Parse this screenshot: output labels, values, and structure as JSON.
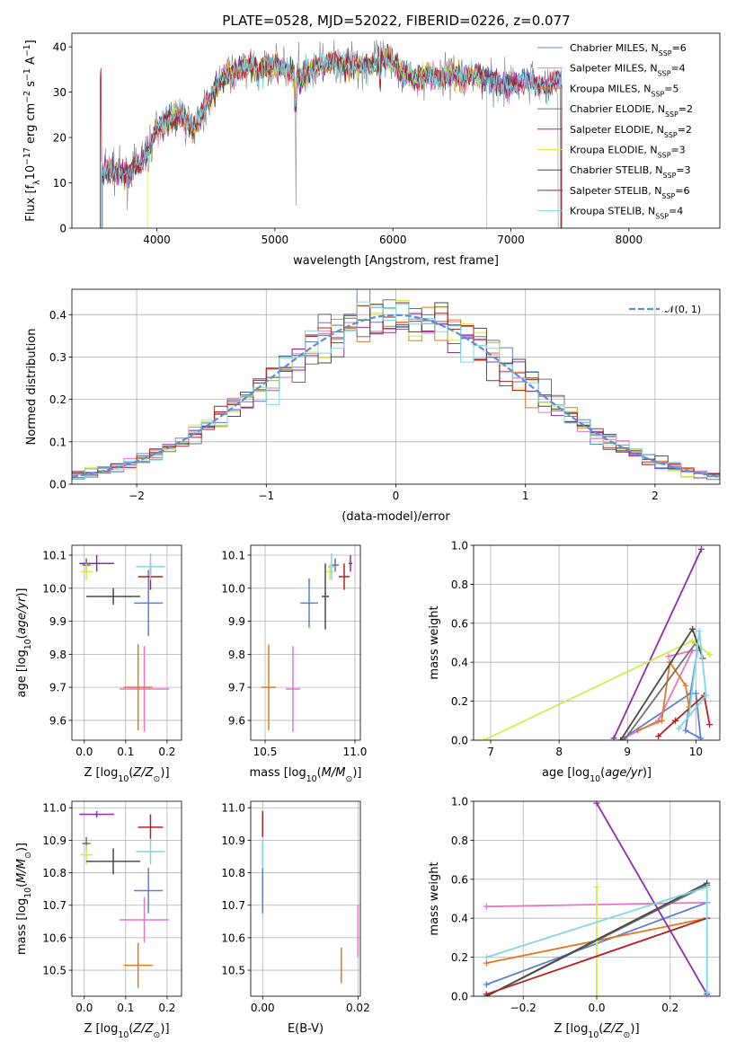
{
  "title": "PLATE=0528, MJD=52022, FIBERID=0226, z=0.077",
  "models": [
    {
      "name": "Chabrier MILES, N_SSP=6",
      "color": "#5b7fd6"
    },
    {
      "name": "Salpeter MILES, N_SSP=4",
      "color": "#e377c2"
    },
    {
      "name": "Kroupa MILES, N_SSP=5",
      "color": "#df7a20"
    },
    {
      "name": "Chabrier ELODIE, N_SSP=2",
      "color": "#707070"
    },
    {
      "name": "Salpeter ELODIE, N_SSP=2",
      "color": "#8e2cae"
    },
    {
      "name": "Kroupa ELODIE, N_SSP=3",
      "color": "#d4e84c"
    },
    {
      "name": "Chabrier STELIB, N_SSP=3",
      "color": "#4a4a4a"
    },
    {
      "name": "Salpeter STELIB, N_SSP=6",
      "color": "#b22222"
    },
    {
      "name": "Kroupa STELIB, N_SSP=4",
      "color": "#7fd6e6"
    }
  ],
  "chart_data": [
    {
      "type": "line",
      "panel": "spectrum",
      "xlabel": "wavelength [Angstrom, rest frame]",
      "ylabel": "Flux [f_λ 10^-17 erg cm^-2 s^-1 A^-1]",
      "xlim": [
        3280,
        8770
      ],
      "ylim": [
        0,
        43
      ],
      "xticks": [
        4000,
        5000,
        6000,
        7000,
        8000
      ],
      "yticks": [
        0,
        10,
        20,
        30,
        40
      ],
      "legend": "upper right",
      "series_shape": {
        "x": [
          3530,
          3600,
          3750,
          3850,
          3930,
          4000,
          4100,
          4200,
          4300,
          4400,
          4500,
          4600,
          4700,
          4800,
          4900,
          5000,
          5100,
          5200,
          5300,
          5400,
          5500,
          5600,
          5700,
          5800,
          5900,
          6000,
          6100,
          6200,
          6300,
          6400,
          6500,
          6600,
          6700,
          6800,
          6900,
          7000,
          7100,
          7200,
          7300,
          7400,
          7500,
          7600,
          7700,
          7800,
          7900,
          8000,
          8100,
          8200,
          8300,
          8400
        ],
        "y": [
          12,
          13,
          12,
          14,
          17,
          22,
          24,
          25,
          22,
          26,
          31,
          34,
          35,
          36,
          35,
          36,
          35,
          33,
          35,
          36,
          37,
          36,
          36,
          36,
          37,
          37,
          34,
          33,
          34,
          33,
          34,
          33,
          34,
          33,
          32,
          31,
          33,
          32,
          31,
          33,
          33,
          33,
          33,
          34,
          35,
          35,
          34,
          35,
          35,
          34
        ]
      }
    },
    {
      "type": "histogram",
      "panel": "residuals",
      "xlabel": "(data-model)/error",
      "ylabel": "Normed distribution",
      "xlim": [
        -2.5,
        2.5
      ],
      "ylim": [
        0,
        0.46
      ],
      "xticks": [
        -2,
        -1,
        0,
        1,
        2
      ],
      "yticks": [
        0.0,
        0.1,
        0.2,
        0.3,
        0.4
      ],
      "grid": true,
      "reference": {
        "name": "N(0,1)",
        "color": "#5b8ed6"
      },
      "bin_width": 0.1
    },
    {
      "type": "scatter",
      "panel": "age-vs-Z",
      "xlabel": "Z [log10(Z/Z☉)]",
      "ylabel": "age [log10(age/yr)]",
      "xlim": [
        -0.03,
        0.235
      ],
      "ylim": [
        9.54,
        10.13
      ],
      "xticks": [
        0.0,
        0.1,
        0.2
      ],
      "yticks": [
        9.6,
        9.7,
        9.8,
        9.9,
        10.0,
        10.1
      ],
      "grid": true,
      "points": [
        {
          "model": 0,
          "x": 0.155,
          "xerr": 0.035,
          "y": 9.955,
          "yerr": 0.1
        },
        {
          "model": 1,
          "x": 0.145,
          "xerr": 0.06,
          "y": 9.695,
          "yerr": 0.13
        },
        {
          "model": 2,
          "x": 0.13,
          "xerr": 0.035,
          "y": 9.7,
          "yerr": 0.13
        },
        {
          "model": 3,
          "x": 0.005,
          "xerr": 0.01,
          "y": 10.07,
          "yerr": 0.02
        },
        {
          "model": 4,
          "x": 0.03,
          "xerr": 0.042,
          "y": 10.075,
          "yerr": 0.025
        },
        {
          "model": 5,
          "x": 0.005,
          "xerr": 0.015,
          "y": 10.05,
          "yerr": 0.025
        },
        {
          "model": 6,
          "x": 0.07,
          "xerr": 0.065,
          "y": 9.975,
          "yerr": 0.025
        },
        {
          "model": 7,
          "x": 0.16,
          "xerr": 0.03,
          "y": 10.035,
          "yerr": 0.04
        },
        {
          "model": 8,
          "x": 0.16,
          "xerr": 0.035,
          "y": 10.065,
          "yerr": 0.04
        }
      ]
    },
    {
      "type": "scatter",
      "panel": "age-vs-mass",
      "xlabel": "mass [log10(M/M☉)]",
      "ylabel": "",
      "xlim": [
        10.42,
        11.03
      ],
      "ylim": [
        9.54,
        10.13
      ],
      "xticks": [
        10.5,
        11.0
      ],
      "yticks": [
        9.6,
        9.7,
        9.8,
        9.9,
        10.0,
        10.1
      ],
      "grid": true,
      "points": [
        {
          "model": 0,
          "x": 10.745,
          "xerr": 0.05,
          "y": 9.955,
          "yerr": 0.075
        },
        {
          "model": 1,
          "x": 10.655,
          "xerr": 0.04,
          "y": 9.695,
          "yerr": 0.13
        },
        {
          "model": 2,
          "x": 10.52,
          "xerr": 0.04,
          "y": 9.7,
          "yerr": 0.13
        },
        {
          "model": 3,
          "x": 10.89,
          "xerr": 0.02,
          "y": 10.07,
          "yerr": 0.02
        },
        {
          "model": 4,
          "x": 10.975,
          "xerr": 0.01,
          "y": 10.075,
          "yerr": 0.025
        },
        {
          "model": 5,
          "x": 10.86,
          "xerr": 0.02,
          "y": 10.05,
          "yerr": 0.025
        },
        {
          "model": 6,
          "x": 10.835,
          "xerr": 0.02,
          "y": 9.975,
          "yerr": 0.1
        },
        {
          "model": 7,
          "x": 10.94,
          "xerr": 0.03,
          "y": 10.035,
          "yerr": 0.04
        },
        {
          "model": 8,
          "x": 10.87,
          "xerr": 0.02,
          "y": 10.065,
          "yerr": 0.04
        }
      ]
    },
    {
      "type": "line",
      "panel": "weight-vs-age",
      "xlabel": "age [log10(age/yr)]",
      "ylabel": "mass weight",
      "xlim": [
        6.75,
        10.35
      ],
      "ylim": [
        0,
        1.0
      ],
      "xticks": [
        7,
        8,
        9,
        10
      ],
      "yticks": [
        0.0,
        0.2,
        0.4,
        0.6,
        0.8,
        1.0
      ],
      "grid": true,
      "series": [
        {
          "model": 0,
          "x": [
            8.9,
            9.92,
            10.02,
            9.85,
            10.07,
            10.0
          ],
          "y": [
            0.0,
            0.24,
            0.46,
            0.05,
            0.01,
            0.24
          ]
        },
        {
          "model": 1,
          "x": [
            8.95,
            9.45,
            9.95,
            9.6
          ],
          "y": [
            0.01,
            0.1,
            0.46,
            0.43
          ]
        },
        {
          "model": 2,
          "x": [
            9.15,
            9.5,
            9.62,
            9.85,
            9.9
          ],
          "y": [
            0.05,
            0.1,
            0.4,
            0.28,
            0.17
          ]
        },
        {
          "model": 3,
          "x": [
            8.95,
            10.0
          ],
          "y": [
            0.0,
            0.5
          ]
        },
        {
          "model": 4,
          "x": [
            8.8,
            10.08
          ],
          "y": [
            0.01,
            0.98
          ]
        },
        {
          "model": 5,
          "x": [
            6.9,
            9.95,
            10.2
          ],
          "y": [
            0.0,
            0.51,
            0.44
          ]
        },
        {
          "model": 6,
          "x": [
            8.9,
            9.95,
            10.1
          ],
          "y": [
            0.0,
            0.57,
            0.42
          ]
        },
        {
          "model": 7,
          "x": [
            9.45,
            9.7,
            10.12,
            10.2
          ],
          "y": [
            0.02,
            0.1,
            0.23,
            0.08
          ]
        },
        {
          "model": 8,
          "x": [
            9.9,
            10.05,
            10.15,
            9.75
          ],
          "y": [
            0.13,
            0.56,
            0.23,
            0.06
          ]
        }
      ]
    },
    {
      "type": "scatter",
      "panel": "mass-vs-Z",
      "xlabel": "Z [log10(Z/Z☉)]",
      "ylabel": "mass [log10(M/M☉)]",
      "xlim": [
        -0.03,
        0.235
      ],
      "ylim": [
        10.42,
        11.02
      ],
      "xticks": [
        0.0,
        0.1,
        0.2
      ],
      "yticks": [
        10.5,
        10.6,
        10.7,
        10.8,
        10.9,
        11.0
      ],
      "grid": true,
      "points": [
        {
          "model": 0,
          "x": 0.155,
          "xerr": 0.035,
          "y": 10.745,
          "yerr": 0.07
        },
        {
          "model": 1,
          "x": 0.145,
          "xerr": 0.06,
          "y": 10.655,
          "yerr": 0.07
        },
        {
          "model": 2,
          "x": 0.13,
          "xerr": 0.035,
          "y": 10.515,
          "yerr": 0.07
        },
        {
          "model": 3,
          "x": 0.005,
          "xerr": 0.01,
          "y": 10.89,
          "yerr": 0.02
        },
        {
          "model": 4,
          "x": 0.03,
          "xerr": 0.042,
          "y": 10.98,
          "yerr": 0.01
        },
        {
          "model": 5,
          "x": 0.005,
          "xerr": 0.015,
          "y": 10.855,
          "yerr": 0.03
        },
        {
          "model": 6,
          "x": 0.07,
          "xerr": 0.065,
          "y": 10.835,
          "yerr": 0.04
        },
        {
          "model": 7,
          "x": 0.16,
          "xerr": 0.03,
          "y": 10.94,
          "yerr": 0.04
        },
        {
          "model": 8,
          "x": 0.16,
          "xerr": 0.035,
          "y": 10.865,
          "yerr": 0.04
        }
      ]
    },
    {
      "type": "scatter",
      "panel": "mass-vs-EBV",
      "xlabel": "E(B-V)",
      "ylabel": "",
      "xlim": [
        -0.0025,
        0.0205
      ],
      "ylim": [
        10.42,
        11.02
      ],
      "xticks": [
        0.0,
        0.02
      ],
      "yticks": [
        10.5,
        10.6,
        10.7,
        10.8,
        10.9,
        11.0
      ],
      "grid": true,
      "points": [
        {
          "model": 0,
          "x": 0.0,
          "y": 10.745,
          "yerr": 0.07
        },
        {
          "model": 1,
          "x": 0.02,
          "y": 10.62,
          "yerr": 0.08
        },
        {
          "model": 2,
          "x": 0.0165,
          "y": 10.515,
          "yerr": 0.055
        },
        {
          "model": 5,
          "x": 0.0,
          "y": 10.86,
          "yerr": 0.03
        },
        {
          "model": 7,
          "x": 0.0,
          "y": 10.95,
          "yerr": 0.04
        },
        {
          "model": 8,
          "x": 0.0,
          "y": 10.86,
          "yerr": 0.04
        }
      ]
    },
    {
      "type": "line",
      "panel": "weight-vs-Z",
      "xlabel": "Z [log10(Z/Z☉)]",
      "ylabel": "mass weight",
      "xlim": [
        -0.335,
        0.335
      ],
      "ylim": [
        0,
        1.0
      ],
      "xticks": [
        -0.2,
        0.0,
        0.2
      ],
      "yticks": [
        0.0,
        0.2,
        0.4,
        0.6,
        0.8,
        1.0
      ],
      "grid": true,
      "series": [
        {
          "model": 0,
          "x": [
            -0.3,
            0.3
          ],
          "y": [
            0.06,
            0.48
          ]
        },
        {
          "model": 1,
          "x": [
            -0.3,
            0.3
          ],
          "y": [
            0.46,
            0.48
          ]
        },
        {
          "model": 2,
          "x": [
            -0.3,
            0.3
          ],
          "y": [
            0.17,
            0.4
          ]
        },
        {
          "model": 3,
          "x": [
            -0.3,
            0.3
          ],
          "y": [
            0.0,
            0.57
          ]
        },
        {
          "model": 4,
          "x": [
            0.0,
            0.3
          ],
          "y": [
            0.99,
            0.01
          ]
        },
        {
          "model": 5,
          "x": [
            0.0,
            0.0
          ],
          "y": [
            0.0,
            0.56
          ]
        },
        {
          "model": 6,
          "x": [
            -0.3,
            0.3
          ],
          "y": [
            0.0,
            0.58
          ]
        },
        {
          "model": 7,
          "x": [
            -0.3,
            0.3
          ],
          "y": [
            0.01,
            0.4
          ]
        },
        {
          "model": 8,
          "x": [
            -0.3,
            0.3,
            0.3
          ],
          "y": [
            0.2,
            0.56,
            0.02
          ]
        }
      ]
    }
  ]
}
